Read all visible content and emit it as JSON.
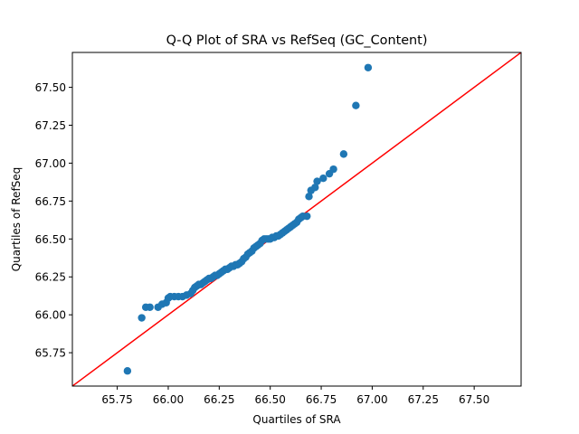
{
  "chart_data": {
    "type": "scatter",
    "title": "Q-Q Plot of SRA vs RefSeq (GC_Content)",
    "xlabel": "Quartiles of SRA",
    "ylabel": "Quartiles of RefSeq",
    "xlim": [
      65.53,
      67.73
    ],
    "ylim": [
      65.53,
      67.73
    ],
    "xticks": [
      "65.75",
      "66.00",
      "66.25",
      "66.50",
      "66.75",
      "67.00",
      "67.25",
      "67.50"
    ],
    "yticks": [
      "65.75",
      "66.00",
      "66.25",
      "66.50",
      "66.75",
      "67.00",
      "67.25",
      "67.50"
    ],
    "grid": false,
    "marker_color": "#1f77b4",
    "reference_line": {
      "color": "#ff0000",
      "from": [
        65.53,
        65.53
      ],
      "to": [
        67.73,
        67.73
      ]
    },
    "points": [
      [
        65.8,
        65.63
      ],
      [
        65.87,
        65.98
      ],
      [
        65.89,
        66.05
      ],
      [
        65.91,
        66.05
      ],
      [
        65.95,
        66.05
      ],
      [
        65.97,
        66.07
      ],
      [
        65.99,
        66.08
      ],
      [
        66.0,
        66.11
      ],
      [
        66.01,
        66.12
      ],
      [
        66.03,
        66.12
      ],
      [
        66.05,
        66.12
      ],
      [
        66.07,
        66.12
      ],
      [
        66.09,
        66.13
      ],
      [
        66.11,
        66.14
      ],
      [
        66.12,
        66.16
      ],
      [
        66.13,
        66.18
      ],
      [
        66.14,
        66.19
      ],
      [
        66.15,
        66.2
      ],
      [
        66.16,
        66.2
      ],
      [
        66.17,
        66.21
      ],
      [
        66.18,
        66.22
      ],
      [
        66.19,
        66.23
      ],
      [
        66.2,
        66.24
      ],
      [
        66.21,
        66.24
      ],
      [
        66.22,
        66.25
      ],
      [
        66.23,
        66.26
      ],
      [
        66.24,
        66.26
      ],
      [
        66.25,
        66.27
      ],
      [
        66.26,
        66.28
      ],
      [
        66.27,
        66.29
      ],
      [
        66.28,
        66.3
      ],
      [
        66.29,
        66.3
      ],
      [
        66.3,
        66.31
      ],
      [
        66.31,
        66.32
      ],
      [
        66.32,
        66.32
      ],
      [
        66.33,
        66.33
      ],
      [
        66.34,
        66.33
      ],
      [
        66.35,
        66.34
      ],
      [
        66.36,
        66.35
      ],
      [
        66.37,
        66.37
      ],
      [
        66.38,
        66.38
      ],
      [
        66.39,
        66.4
      ],
      [
        66.4,
        66.41
      ],
      [
        66.41,
        66.42
      ],
      [
        66.42,
        66.44
      ],
      [
        66.43,
        66.45
      ],
      [
        66.44,
        66.46
      ],
      [
        66.45,
        66.47
      ],
      [
        66.46,
        66.49
      ],
      [
        66.47,
        66.5
      ],
      [
        66.48,
        66.5
      ],
      [
        66.49,
        66.5
      ],
      [
        66.5,
        66.5
      ],
      [
        66.51,
        66.51
      ],
      [
        66.52,
        66.51
      ],
      [
        66.53,
        66.52
      ],
      [
        66.54,
        66.52
      ],
      [
        66.55,
        66.53
      ],
      [
        66.56,
        66.54
      ],
      [
        66.57,
        66.55
      ],
      [
        66.58,
        66.56
      ],
      [
        66.59,
        66.57
      ],
      [
        66.6,
        66.58
      ],
      [
        66.61,
        66.59
      ],
      [
        66.62,
        66.6
      ],
      [
        66.63,
        66.61
      ],
      [
        66.64,
        66.63
      ],
      [
        66.65,
        66.64
      ],
      [
        66.66,
        66.65
      ],
      [
        66.68,
        66.65
      ],
      [
        66.69,
        66.78
      ],
      [
        66.7,
        66.82
      ],
      [
        66.72,
        66.84
      ],
      [
        66.73,
        66.88
      ],
      [
        66.76,
        66.9
      ],
      [
        66.79,
        66.93
      ],
      [
        66.81,
        66.96
      ],
      [
        66.86,
        67.06
      ],
      [
        66.92,
        67.38
      ],
      [
        66.98,
        67.63
      ]
    ]
  }
}
